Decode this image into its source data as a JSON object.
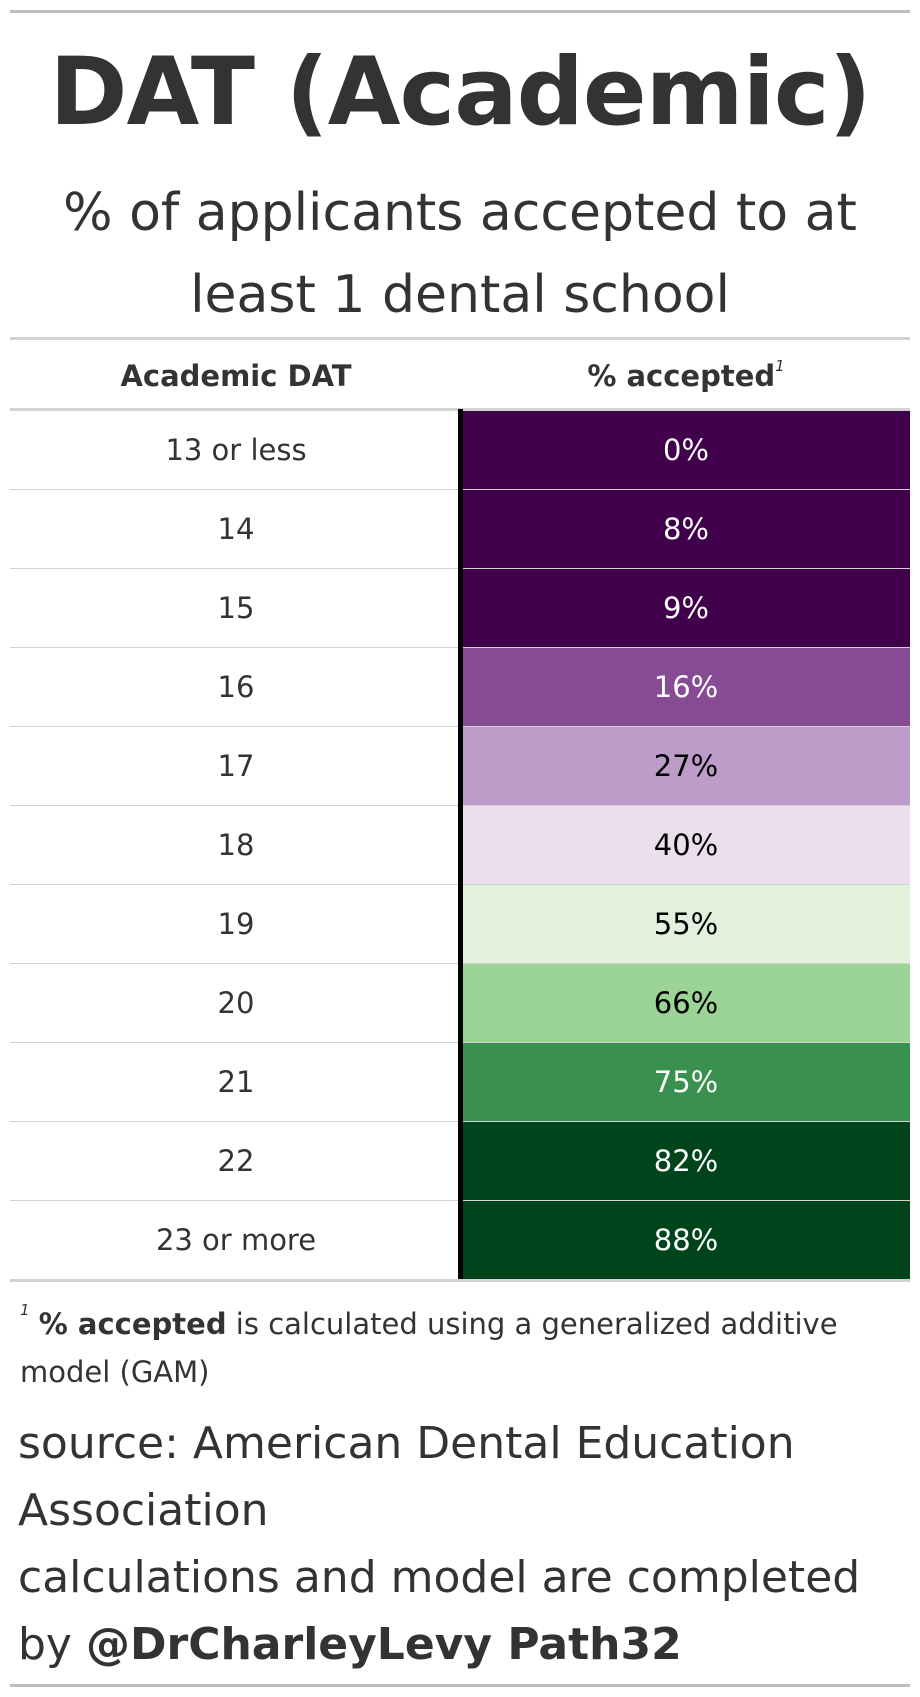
{
  "title": "DAT (Academic)",
  "subtitle": "% of applicants accepted to at least 1 dental school",
  "columns": {
    "label": "Academic DAT",
    "value": "% accepted",
    "value_marker": "1"
  },
  "footnote": {
    "marker": "1",
    "bold": "% accepted",
    "text": " is calculated using a generalized additive model (GAM)"
  },
  "source": {
    "line1": "source: American Dental Education Association",
    "line2_prefix": "calculations and model are completed by ",
    "line2_bold": "@DrCharleyLevy Path32"
  },
  "chart_data": {
    "type": "table",
    "title": "DAT (Academic)",
    "subtitle": "% of applicants accepted to at least 1 dental school",
    "columns": [
      "Academic DAT",
      "% accepted"
    ],
    "rows": [
      {
        "dat": "13 or less",
        "accepted": "0%",
        "value": 0,
        "fill": "#40004b",
        "text_color": "#ffffff"
      },
      {
        "dat": "14",
        "accepted": "8%",
        "value": 8,
        "fill": "#40004b",
        "text_color": "#ffffff"
      },
      {
        "dat": "15",
        "accepted": "9%",
        "value": 9,
        "fill": "#40004b",
        "text_color": "#ffffff"
      },
      {
        "dat": "16",
        "accepted": "16%",
        "value": 16,
        "fill": "#864b92",
        "text_color": "#ffffff"
      },
      {
        "dat": "17",
        "accepted": "27%",
        "value": 27,
        "fill": "#bd9cc9",
        "text_color": "#000000"
      },
      {
        "dat": "18",
        "accepted": "40%",
        "value": 40,
        "fill": "#ebdeed",
        "text_color": "#000000"
      },
      {
        "dat": "19",
        "accepted": "55%",
        "value": 55,
        "fill": "#e1f1dc",
        "text_color": "#000000"
      },
      {
        "dat": "20",
        "accepted": "66%",
        "value": 66,
        "fill": "#9bd495",
        "text_color": "#000000"
      },
      {
        "dat": "21",
        "accepted": "75%",
        "value": 75,
        "fill": "#3a904e",
        "text_color": "#ffffff"
      },
      {
        "dat": "22",
        "accepted": "82%",
        "value": 82,
        "fill": "#00441b",
        "text_color": "#ffffff"
      },
      {
        "dat": "23 or more",
        "accepted": "88%",
        "value": 88,
        "fill": "#00441b",
        "text_color": "#ffffff"
      }
    ]
  }
}
